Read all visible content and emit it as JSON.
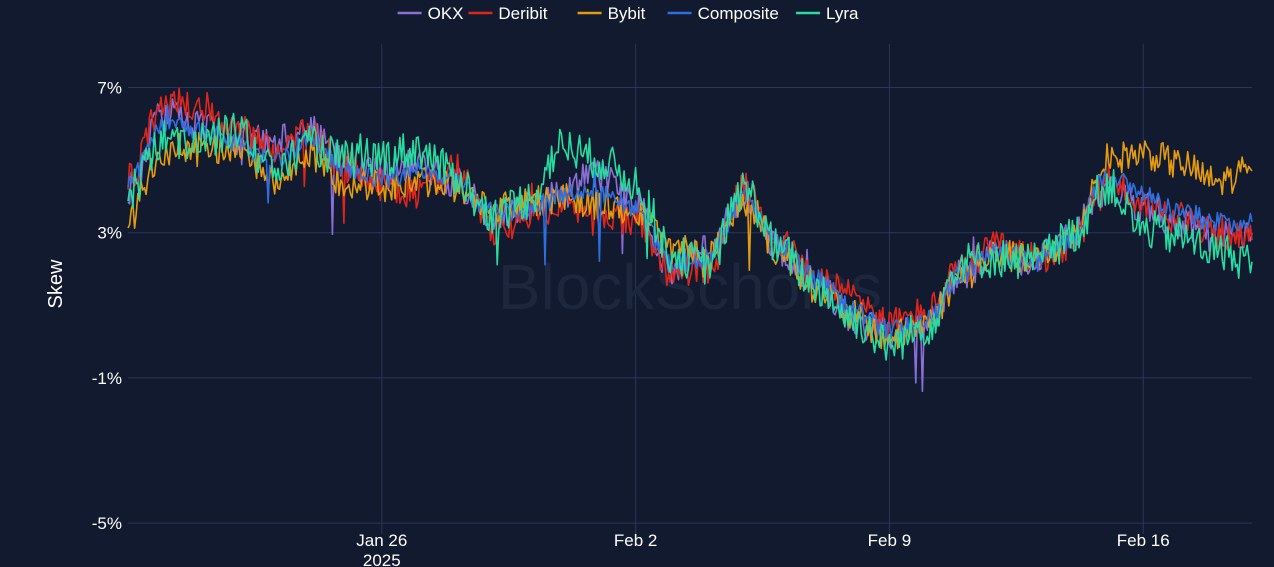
{
  "legend": {
    "items": [
      {
        "name": "OKX",
        "color": "#8c6fd6"
      },
      {
        "name": "Deribit",
        "color": "#e0261b"
      },
      {
        "name": "Bybit",
        "color": "#e49b0f"
      },
      {
        "name": "Composite",
        "color": "#2e6fdf"
      },
      {
        "name": "Lyra",
        "color": "#27dca0"
      }
    ]
  },
  "watermark": "BlockScholes",
  "chart_data": {
    "type": "line",
    "ylabel": "Skew",
    "y_unit": "%",
    "ylim": [
      -5.3,
      8.2
    ],
    "xlim": [
      "2025-01-19",
      "2025-02-19"
    ],
    "y_ticks": [
      {
        "value": 7,
        "label": "7%"
      },
      {
        "value": 3,
        "label": "3%"
      },
      {
        "value": -1,
        "label": "-1%"
      },
      {
        "value": -5,
        "label": "-5%"
      }
    ],
    "x_ticks": [
      {
        "date": "2025-01-26",
        "label": "Jan 26",
        "sublabel": "2025"
      },
      {
        "date": "2025-02-02",
        "label": "Feb 2",
        "sublabel": ""
      },
      {
        "date": "2025-02-09",
        "label": "Feb 9",
        "sublabel": ""
      },
      {
        "date": "2025-02-16",
        "label": "Feb 16",
        "sublabel": ""
      }
    ],
    "grid": true,
    "legend_position": "top-center",
    "background": "#111a2e",
    "grid_color": "#28365a",
    "series": [
      {
        "name": "OKX",
        "color": "#8c6fd6",
        "dates": [
          "2025-01-19",
          "2025-01-20",
          "2025-01-21",
          "2025-01-22",
          "2025-01-23",
          "2025-01-24",
          "2025-01-25",
          "2025-01-26",
          "2025-01-27",
          "2025-01-28",
          "2025-01-29",
          "2025-01-30",
          "2025-01-31",
          "2025-02-01",
          "2025-02-02",
          "2025-02-03",
          "2025-02-04",
          "2025-02-05",
          "2025-02-06",
          "2025-02-07",
          "2025-02-08",
          "2025-02-09",
          "2025-02-10",
          "2025-02-11",
          "2025-02-12",
          "2025-02-13",
          "2025-02-14",
          "2025-02-15",
          "2025-02-16",
          "2025-02-17",
          "2025-02-18",
          "2025-02-19"
        ],
        "values": [
          4.2,
          6.3,
          5.9,
          5.6,
          5.5,
          5.8,
          4.9,
          4.7,
          4.9,
          4.4,
          3.5,
          3.7,
          4.1,
          4.7,
          3.8,
          2.0,
          2.6,
          4.0,
          2.5,
          1.6,
          0.6,
          0.2,
          0.5,
          1.9,
          2.4,
          2.2,
          3.0,
          4.2,
          3.7,
          3.3,
          2.9,
          3.0
        ]
      },
      {
        "name": "Deribit",
        "color": "#e0261b",
        "dates": [
          "2025-01-19",
          "2025-01-20",
          "2025-01-21",
          "2025-01-22",
          "2025-01-23",
          "2025-01-24",
          "2025-01-25",
          "2025-01-26",
          "2025-01-27",
          "2025-01-28",
          "2025-01-29",
          "2025-01-30",
          "2025-01-31",
          "2025-02-01",
          "2025-02-02",
          "2025-02-03",
          "2025-02-04",
          "2025-02-05",
          "2025-02-06",
          "2025-02-07",
          "2025-02-08",
          "2025-02-09",
          "2025-02-10",
          "2025-02-11",
          "2025-02-12",
          "2025-02-13",
          "2025-02-14",
          "2025-02-15",
          "2025-02-16",
          "2025-02-17",
          "2025-02-18",
          "2025-02-19"
        ],
        "values": [
          4.5,
          6.6,
          6.5,
          5.9,
          5.3,
          5.7,
          4.8,
          4.3,
          4.1,
          4.8,
          3.1,
          3.3,
          3.9,
          3.3,
          3.4,
          1.9,
          2.0,
          4.2,
          2.7,
          1.7,
          1.3,
          0.5,
          0.8,
          2.0,
          2.6,
          2.3,
          2.6,
          4.5,
          3.8,
          3.4,
          3.0,
          2.8
        ]
      },
      {
        "name": "Bybit",
        "color": "#e49b0f",
        "dates": [
          "2025-01-19",
          "2025-01-20",
          "2025-01-21",
          "2025-01-22",
          "2025-01-23",
          "2025-01-24",
          "2025-01-25",
          "2025-01-26",
          "2025-01-27",
          "2025-01-28",
          "2025-01-29",
          "2025-01-30",
          "2025-01-31",
          "2025-02-01",
          "2025-02-02",
          "2025-02-03",
          "2025-02-04",
          "2025-02-05",
          "2025-02-06",
          "2025-02-07",
          "2025-02-08",
          "2025-02-09",
          "2025-02-10",
          "2025-02-11",
          "2025-02-12",
          "2025-02-13",
          "2025-02-14",
          "2025-02-15",
          "2025-02-16",
          "2025-02-17",
          "2025-02-18",
          "2025-02-19"
        ],
        "values": [
          3.4,
          5.3,
          5.4,
          5.3,
          4.5,
          5.1,
          4.4,
          4.3,
          4.4,
          4.3,
          3.7,
          3.8,
          4.0,
          3.8,
          3.5,
          2.6,
          2.4,
          3.9,
          2.4,
          1.5,
          0.7,
          0.1,
          0.5,
          1.8,
          2.4,
          2.2,
          2.8,
          5.0,
          5.2,
          4.9,
          4.4,
          4.7
        ]
      },
      {
        "name": "Composite",
        "color": "#2e6fdf",
        "dates": [
          "2025-01-19",
          "2025-01-20",
          "2025-01-21",
          "2025-01-22",
          "2025-01-23",
          "2025-01-24",
          "2025-01-25",
          "2025-01-26",
          "2025-01-27",
          "2025-01-28",
          "2025-01-29",
          "2025-01-30",
          "2025-01-31",
          "2025-02-01",
          "2025-02-02",
          "2025-02-03",
          "2025-02-04",
          "2025-02-05",
          "2025-02-06",
          "2025-02-07",
          "2025-02-08",
          "2025-02-09",
          "2025-02-10",
          "2025-02-11",
          "2025-02-12",
          "2025-02-13",
          "2025-02-14",
          "2025-02-15",
          "2025-02-16",
          "2025-02-17",
          "2025-02-18",
          "2025-02-19"
        ],
        "values": [
          4.4,
          6.0,
          5.8,
          5.5,
          4.9,
          5.5,
          4.8,
          4.5,
          4.7,
          4.5,
          3.6,
          3.6,
          4.1,
          4.1,
          3.6,
          2.2,
          2.3,
          4.0,
          2.6,
          1.7,
          0.9,
          0.3,
          0.6,
          1.9,
          2.5,
          2.2,
          2.8,
          4.6,
          4.1,
          3.6,
          3.3,
          3.3
        ]
      },
      {
        "name": "Lyra",
        "color": "#27dca0",
        "dates": [
          "2025-01-19",
          "2025-01-20",
          "2025-01-21",
          "2025-01-22",
          "2025-01-23",
          "2025-01-24",
          "2025-01-25",
          "2025-01-26",
          "2025-01-27",
          "2025-01-28",
          "2025-01-29",
          "2025-01-30",
          "2025-01-31",
          "2025-02-01",
          "2025-02-02",
          "2025-02-03",
          "2025-02-04",
          "2025-02-05",
          "2025-02-06",
          "2025-02-07",
          "2025-02-08",
          "2025-02-09",
          "2025-02-10",
          "2025-02-11",
          "2025-02-12",
          "2025-02-13",
          "2025-02-14",
          "2025-02-15",
          "2025-02-16",
          "2025-02-17",
          "2025-02-18",
          "2025-02-19"
        ],
        "values": [
          4.1,
          5.6,
          5.5,
          5.8,
          4.7,
          5.4,
          5.0,
          5.1,
          5.3,
          4.6,
          3.4,
          3.9,
          5.4,
          5.0,
          4.4,
          2.4,
          2.1,
          4.2,
          2.5,
          1.5,
          0.6,
          -0.1,
          0.4,
          2.2,
          2.3,
          2.2,
          2.9,
          4.3,
          3.1,
          2.9,
          2.5,
          2.2
        ]
      }
    ]
  }
}
